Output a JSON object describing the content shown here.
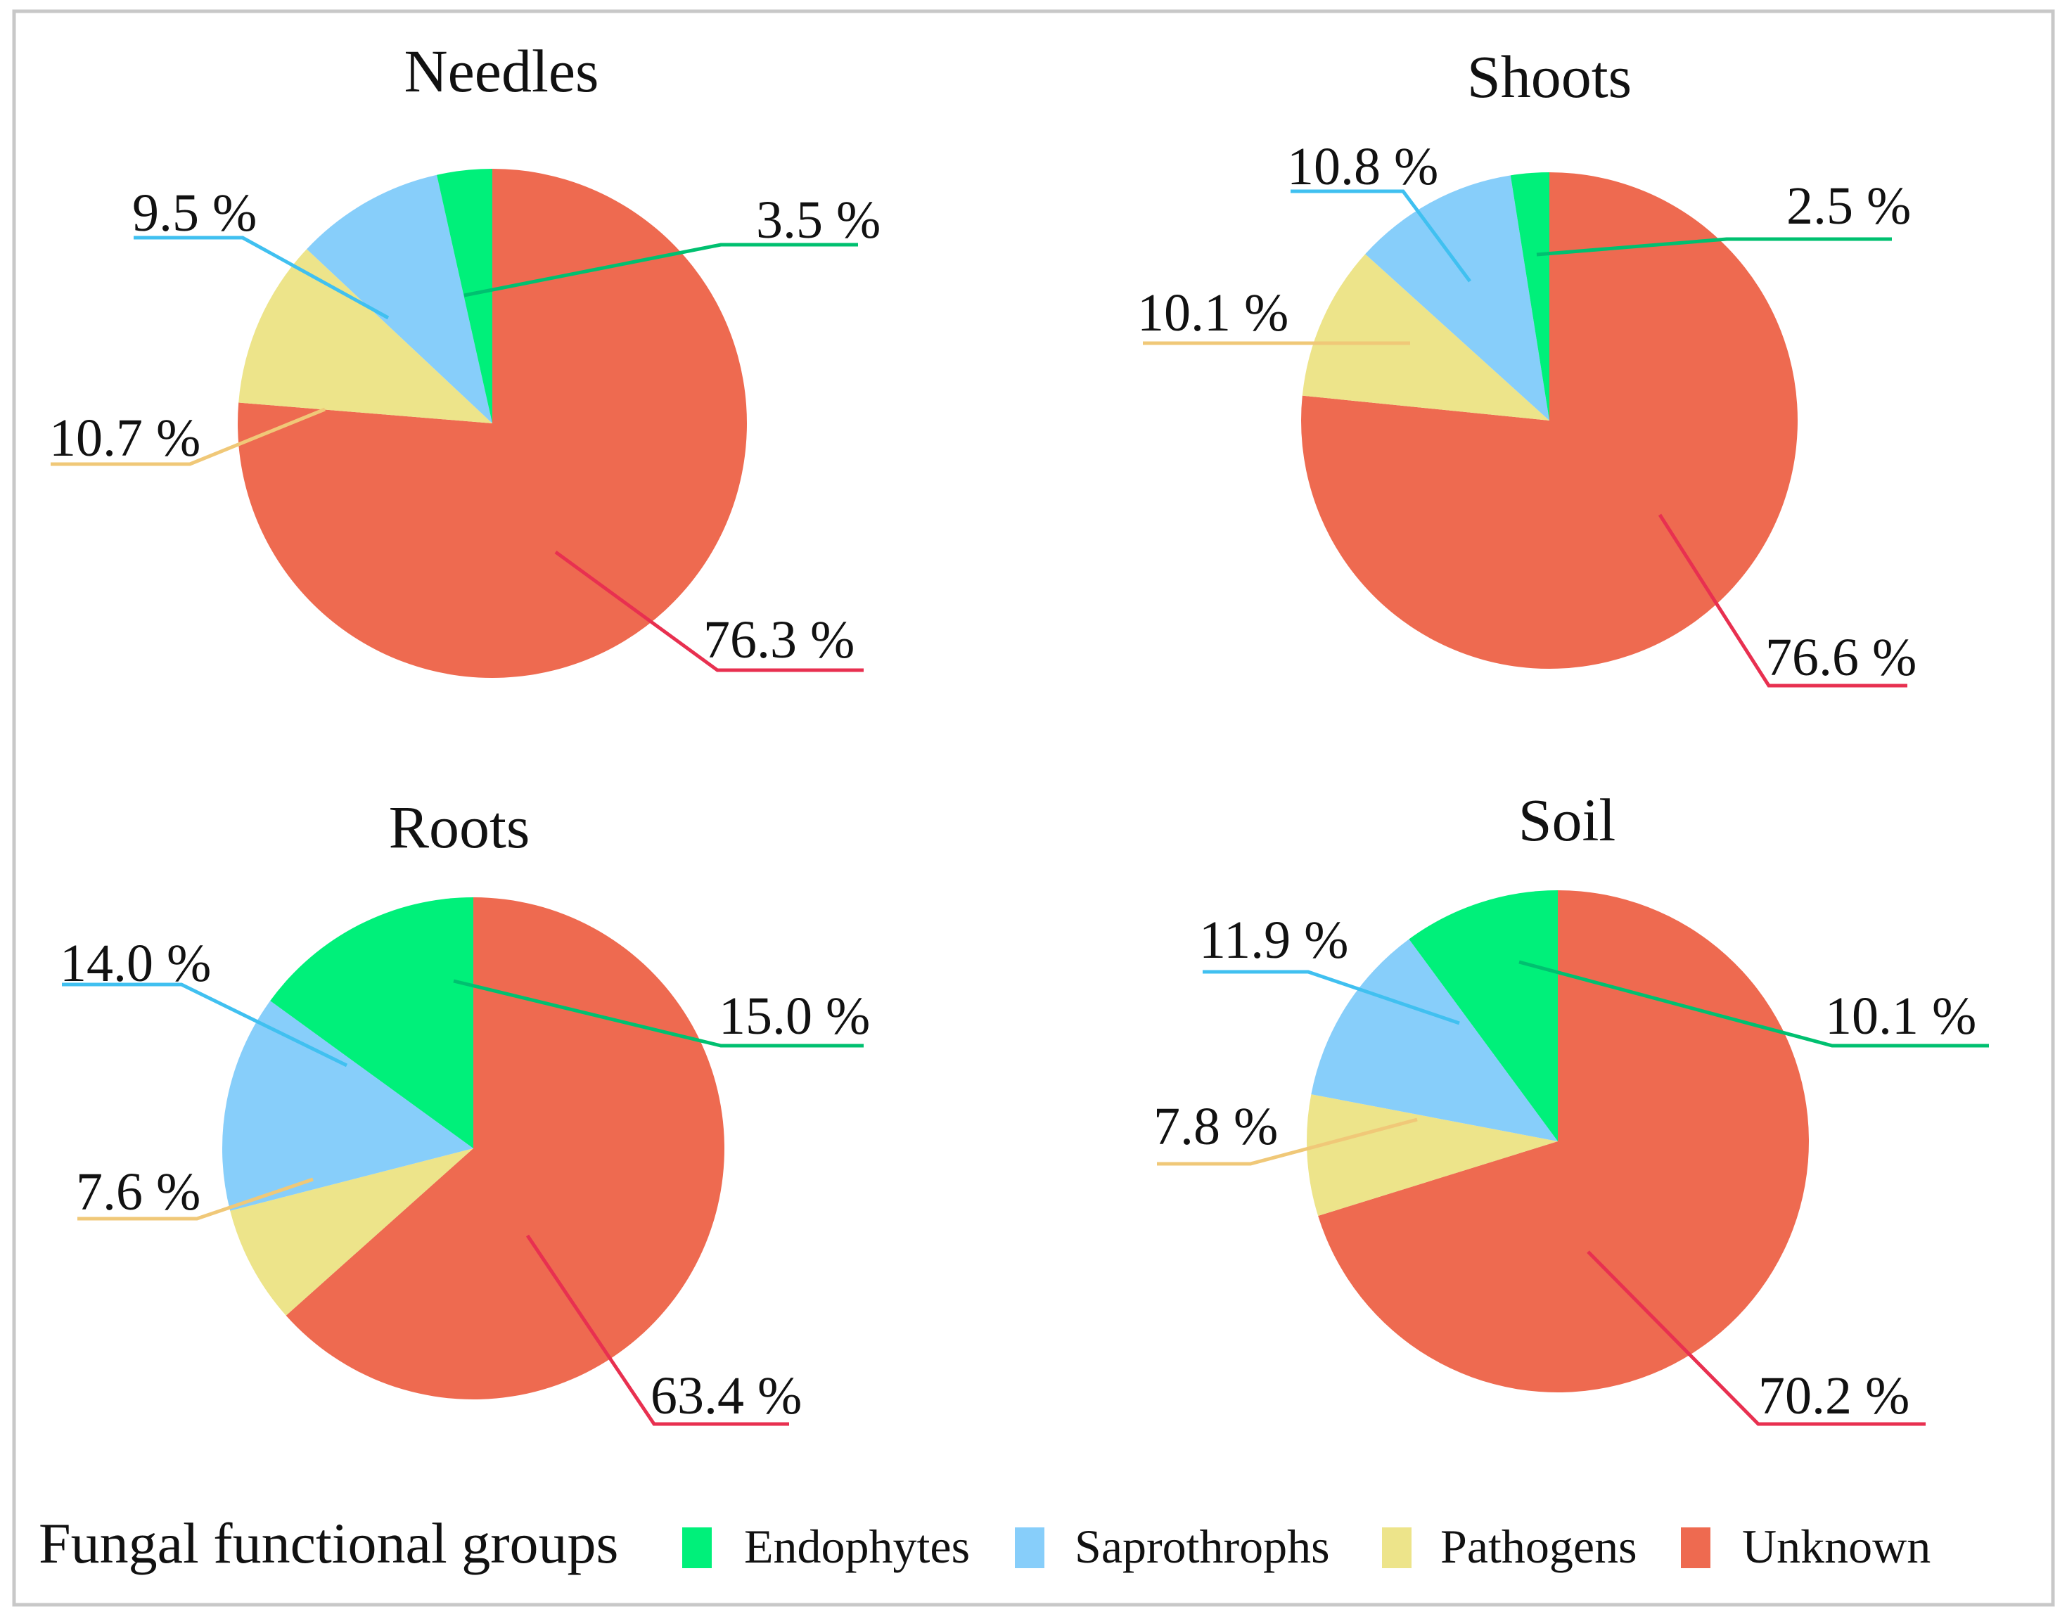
{
  "chart_data": [
    {
      "type": "pie",
      "title": "Needles",
      "slices": [
        {
          "group": "Unknown",
          "value": 76.3,
          "label": "76.3 %"
        },
        {
          "group": "Pathogens",
          "value": 10.7,
          "label": "10.7 %"
        },
        {
          "group": "Saprothrophs",
          "value": 9.5,
          "label": "9.5 %"
        },
        {
          "group": "Endophytes",
          "value": 3.5,
          "label": "3.5 %"
        }
      ]
    },
    {
      "type": "pie",
      "title": "Shoots",
      "slices": [
        {
          "group": "Unknown",
          "value": 76.6,
          "label": "76.6 %"
        },
        {
          "group": "Pathogens",
          "value": 10.1,
          "label": "10.1 %"
        },
        {
          "group": "Saprothrophs",
          "value": 10.8,
          "label": "10.8 %"
        },
        {
          "group": "Endophytes",
          "value": 2.5,
          "label": "2.5 %"
        }
      ]
    },
    {
      "type": "pie",
      "title": "Roots",
      "slices": [
        {
          "group": "Unknown",
          "value": 63.4,
          "label": "63.4 %"
        },
        {
          "group": "Pathogens",
          "value": 7.6,
          "label": "7.6 %"
        },
        {
          "group": "Saprothrophs",
          "value": 14.0,
          "label": "14.0  %"
        },
        {
          "group": "Endophytes",
          "value": 15.0,
          "label": "15.0 %"
        }
      ]
    },
    {
      "type": "pie",
      "title": "Soil",
      "slices": [
        {
          "group": "Unknown",
          "value": 70.2,
          "label": "70.2 %"
        },
        {
          "group": "Pathogens",
          "value": 7.8,
          "label": "7.8 %"
        },
        {
          "group": "Saprothrophs",
          "value": 11.9,
          "label": "11.9 %"
        },
        {
          "group": "Endophytes",
          "value": 10.1,
          "label": "10.1 %"
        }
      ]
    }
  ],
  "legend": {
    "title": "Fungal functional groups",
    "items": [
      {
        "name": "Endophytes",
        "color": "#00f07a"
      },
      {
        "name": "Saprothrophs",
        "color": "#87cefa"
      },
      {
        "name": "Pathogens",
        "color": "#ede48a"
      },
      {
        "name": "Unknown",
        "color": "#ee6a50"
      }
    ]
  },
  "leader_colors": {
    "Endophytes": "#00c070",
    "Saprothrophs": "#40c0f0",
    "Pathogens": "#f0c878",
    "Unknown": "#e83050"
  }
}
